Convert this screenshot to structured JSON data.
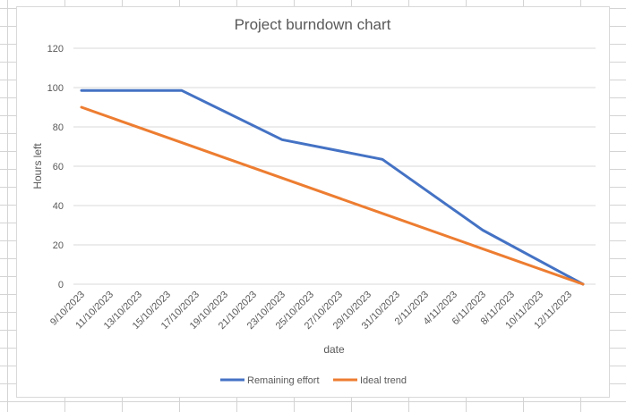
{
  "chart_data": {
    "type": "line",
    "title": "Project burndown chart",
    "xlabel": "date",
    "ylabel": "Hours left",
    "ylim": [
      0,
      120
    ],
    "yticks": [
      0,
      20,
      40,
      60,
      80,
      100,
      120
    ],
    "grid": true,
    "legend_position": "bottom",
    "x_tick_labels": [
      "9/10/2023",
      "11/10/2023",
      "13/10/2023",
      "15/10/2023",
      "17/10/2023",
      "19/10/2023",
      "21/10/2023",
      "23/10/2023",
      "25/10/2023",
      "27/10/2023",
      "29/10/2023",
      "31/10/2023",
      "2/11/2023",
      "4/11/2023",
      "6/11/2023",
      "8/11/2023",
      "10/11/2023",
      "12/11/2023"
    ],
    "series": [
      {
        "name": "Remaining effort",
        "color": "#4472c4",
        "points": [
          {
            "x": "9/10/2023",
            "y": 98.5
          },
          {
            "x": "16/10/2023",
            "y": 98.5
          },
          {
            "x": "23/10/2023",
            "y": 73.5
          },
          {
            "x": "30/10/2023",
            "y": 63.5
          },
          {
            "x": "6/11/2023",
            "y": 27.5
          },
          {
            "x": "13/11/2023",
            "y": 0
          }
        ]
      },
      {
        "name": "Ideal trend",
        "color": "#ed7d31",
        "points": [
          {
            "x": "9/10/2023",
            "y": 90
          },
          {
            "x": "16/10/2023",
            "y": 72
          },
          {
            "x": "23/10/2023",
            "y": 54
          },
          {
            "x": "30/10/2023",
            "y": 36
          },
          {
            "x": "6/11/2023",
            "y": 18
          },
          {
            "x": "13/11/2023",
            "y": 0
          }
        ]
      }
    ]
  }
}
